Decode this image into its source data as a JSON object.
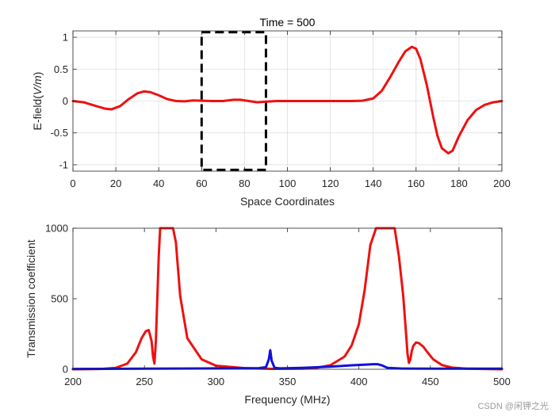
{
  "watermark": "CSDN @闲钾之光",
  "chart_data": [
    {
      "type": "line",
      "title": "Time = 500",
      "xlabel": "Space Coordinates",
      "ylabel_prefix": "E-field(",
      "ylabel_italic": "V/m",
      "ylabel_suffix": ")",
      "xlim": [
        0,
        200
      ],
      "ylim": [
        -1.1,
        1.1
      ],
      "xticks": [
        0,
        20,
        40,
        60,
        80,
        100,
        120,
        140,
        160,
        180,
        200
      ],
      "yticks": [
        -1,
        -0.5,
        0,
        0.5,
        1
      ],
      "grid": true,
      "series": [
        {
          "color": "#ee1111",
          "x": [
            0,
            5,
            10,
            15,
            18,
            22,
            26,
            30,
            33,
            36,
            40,
            44,
            48,
            52,
            56,
            60,
            65,
            70,
            75,
            78,
            82,
            86,
            90,
            95,
            100,
            110,
            120,
            130,
            135,
            140,
            144,
            148,
            152,
            155,
            158,
            160,
            162,
            165,
            168,
            170,
            172,
            175,
            177,
            180,
            184,
            188,
            192,
            196,
            200
          ],
          "y": [
            0,
            -0.02,
            -0.07,
            -0.12,
            -0.13,
            -0.08,
            0.03,
            0.12,
            0.15,
            0.14,
            0.09,
            0.03,
            0,
            -0.005,
            0.01,
            0.005,
            0,
            0,
            0.02,
            0.02,
            0,
            -0.02,
            -0.01,
            0,
            0,
            0,
            0,
            0,
            0.005,
            0.04,
            0.16,
            0.38,
            0.62,
            0.78,
            0.85,
            0.82,
            0.66,
            0.25,
            -0.25,
            -0.55,
            -0.74,
            -0.82,
            -0.78,
            -0.55,
            -0.3,
            -0.14,
            -0.06,
            -0.02,
            0
          ]
        }
      ],
      "annotation": {
        "shape": "dashed-rectangle",
        "x": [
          60,
          90
        ],
        "y": [
          -1.08,
          1.08
        ],
        "color": "#000000"
      }
    },
    {
      "type": "line",
      "title": "",
      "xlabel": "Frequency (MHz)",
      "ylabel": "Transmission coefficient",
      "xlim": [
        200,
        500
      ],
      "ylim": [
        0,
        1000
      ],
      "xticks": [
        200,
        250,
        300,
        350,
        400,
        450,
        500
      ],
      "yticks": [
        0,
        500,
        1000
      ],
      "grid": false,
      "series": [
        {
          "color": "#ee1111",
          "x": [
            200,
            220,
            230,
            238,
            244,
            248,
            251,
            253,
            255,
            256,
            257,
            258,
            259,
            260,
            261,
            262,
            265,
            268,
            270,
            272,
            275,
            280,
            290,
            300,
            320,
            340,
            360,
            370,
            380,
            390,
            395,
            400,
            404,
            408,
            412,
            416,
            420,
            423,
            425,
            428,
            431,
            433,
            434,
            435,
            436,
            437,
            438,
            440,
            442,
            445,
            448,
            452,
            458,
            465,
            475,
            500
          ],
          "y": [
            0,
            2,
            10,
            40,
            120,
            220,
            270,
            278,
            200,
            90,
            40,
            200,
            500,
            800,
            1000,
            1000,
            1000,
            1000,
            1000,
            900,
            520,
            220,
            70,
            25,
            8,
            3,
            4,
            10,
            28,
            90,
            170,
            320,
            560,
            880,
            1000,
            1000,
            1000,
            1000,
            1000,
            800,
            520,
            250,
            110,
            45,
            70,
            130,
            165,
            190,
            185,
            160,
            120,
            70,
            30,
            12,
            4,
            0
          ]
        },
        {
          "color": "#1111dd",
          "x": [
            200,
            250,
            300,
            330,
            335,
            337,
            338,
            339,
            341,
            345,
            360,
            380,
            395,
            405,
            410,
            413,
            416,
            420,
            430,
            450,
            500
          ],
          "y": [
            2,
            4,
            6,
            8,
            15,
            70,
            135,
            60,
            10,
            6,
            10,
            18,
            28,
            33,
            36,
            36,
            28,
            10,
            5,
            4,
            4
          ]
        }
      ]
    }
  ]
}
